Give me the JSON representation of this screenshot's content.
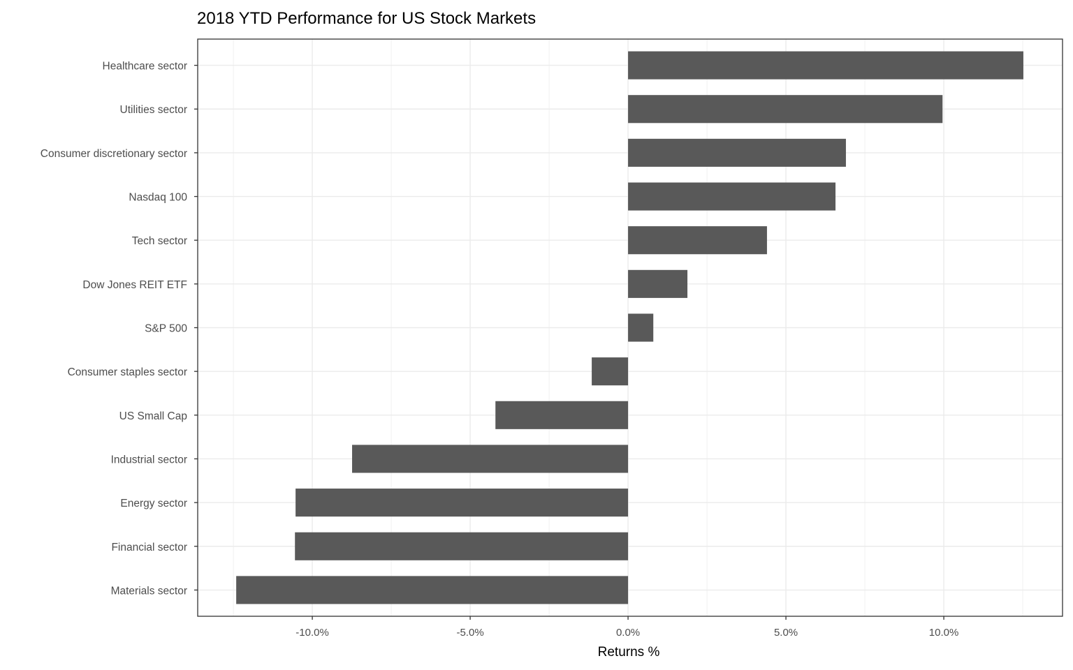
{
  "chart_data": {
    "type": "bar",
    "orientation": "horizontal",
    "title": "2018 YTD Performance for US Stock Markets",
    "xlabel": "Returns %",
    "ylabel": "",
    "categories": [
      "Healthcare sector",
      "Utilities sector",
      "Consumer discretionary sector",
      "Nasdaq 100",
      "Tech sector",
      "Dow Jones REIT ETF",
      "S&P 500",
      "Consumer staples sector",
      "US Small Cap",
      "Industrial sector",
      "Energy sector",
      "Financial sector",
      "Materials sector"
    ],
    "values": [
      12.52,
      9.96,
      6.9,
      6.57,
      4.4,
      1.88,
      0.8,
      -1.15,
      -4.2,
      -8.74,
      -10.53,
      -10.55,
      -12.41
    ],
    "xlim": [
      -13.63,
      13.76
    ],
    "xticks": [
      -10,
      -5,
      0,
      5,
      10
    ],
    "xtick_labels": [
      "-10.0%",
      "-5.0%",
      "0.0%",
      "5.0%",
      "10.0%"
    ],
    "grid": true,
    "bar_color": "#595959",
    "grid_color": "#ebebeb"
  }
}
